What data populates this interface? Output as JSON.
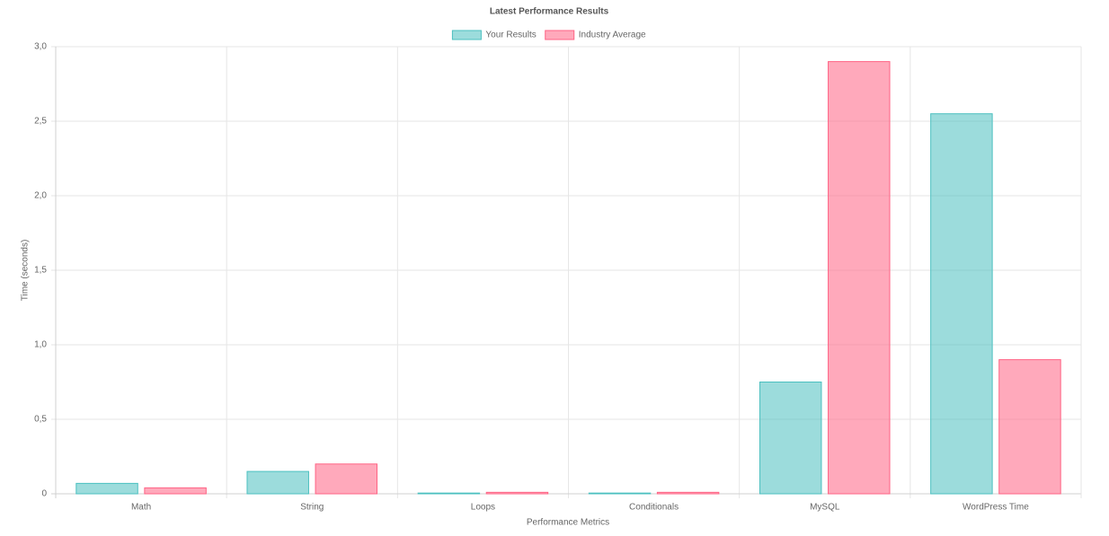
{
  "chart_data": {
    "type": "bar",
    "title": "Latest Performance Results",
    "x_label": "Performance Metrics",
    "y_label": "Time (seconds)",
    "categories": [
      "Math",
      "String",
      "Loops",
      "Conditionals",
      "MySQL",
      "WordPress Time"
    ],
    "series": [
      {
        "name": "Your Results",
        "color": "rgba(75,192,192,0.55)",
        "border": "rgb(75,192,192)",
        "values": [
          0.07,
          0.15,
          0.005,
          0.005,
          0.75,
          2.55
        ]
      },
      {
        "name": "Industry Average",
        "color": "rgba(255,99,132,0.55)",
        "border": "rgb(255,99,132)",
        "values": [
          0.04,
          0.2,
          0.01,
          0.01,
          2.9,
          0.9
        ]
      }
    ],
    "ylim": [
      0,
      3
    ],
    "yticks": [
      0,
      {
        "value": 0.5,
        "label": "0,5"
      },
      {
        "value": 1,
        "label": "1,0"
      },
      {
        "value": 1.5,
        "label": "1,5"
      },
      {
        "value": 2,
        "label": "2,0"
      },
      {
        "value": 2.5,
        "label": "2,5"
      },
      {
        "value": 3,
        "label": "3,0"
      }
    ],
    "grid": true,
    "legend": "top"
  }
}
